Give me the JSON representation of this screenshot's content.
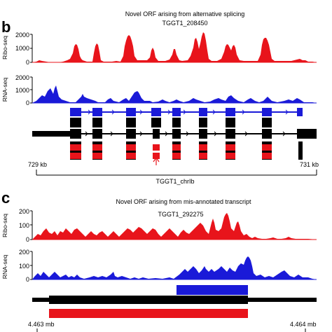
{
  "panel_b": {
    "letter": "b",
    "title": "Novel ORF arising from alternative splicing",
    "gene": "TGGT1_208450",
    "ribo_label": "Ribo-seq",
    "rna_label": "RNA-seq",
    "ribo_ticks": [
      "2000",
      "1000",
      "0"
    ],
    "rna_ticks": [
      "2000",
      "1000",
      "0"
    ],
    "coord_left": "729 kb",
    "coord_right": "731 kb",
    "chrom": "TGGT1_chrIb"
  },
  "panel_c": {
    "letter": "c",
    "title": "Novel ORF arising from mis-annotated transcript",
    "gene": "TGGT1_292275",
    "ribo_label": "Ribo-seq",
    "rna_label": "RNA-seq",
    "ribo_ticks": [
      "200",
      "100",
      "0"
    ],
    "rna_ticks": [
      "200",
      "100",
      "0"
    ],
    "coord_left": "4.463 mb",
    "coord_right": "4.464 mb"
  },
  "colors": {
    "ribo": "#e8141b",
    "rna": "#1a1ad8",
    "annotation": "#000000"
  }
}
